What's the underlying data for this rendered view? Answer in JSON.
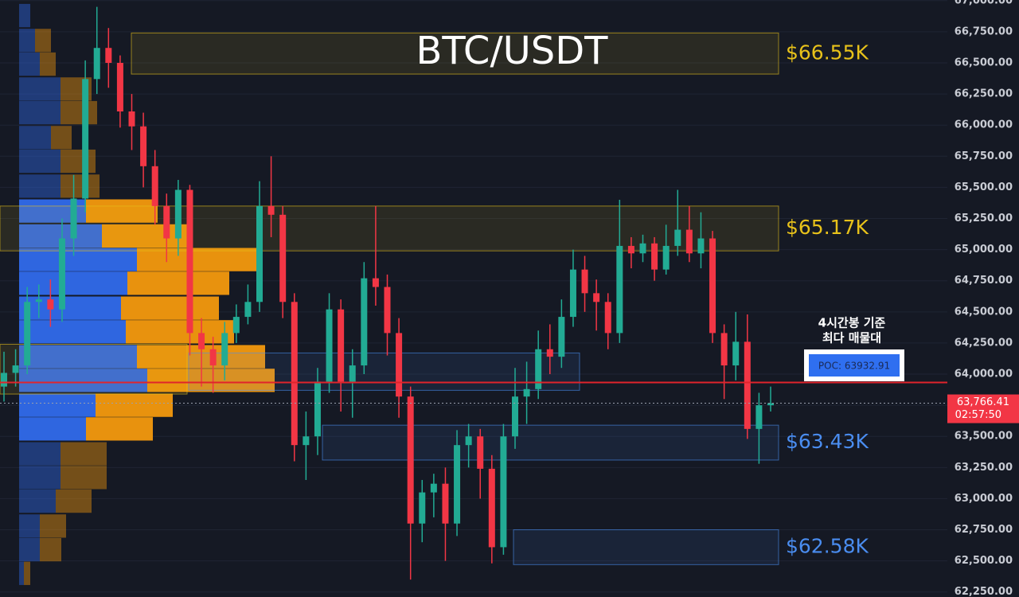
{
  "chart_data": {
    "type": "candlestick",
    "title": "BTC/USDT",
    "ylim": [
      62210,
      67005
    ],
    "yticks": [
      {
        "value": 62250,
        "label": "62,250.00"
      },
      {
        "value": 62500,
        "label": "62,500.00"
      },
      {
        "value": 62750,
        "label": "62,750.00"
      },
      {
        "value": 63000,
        "label": "63,000.00"
      },
      {
        "value": 63250,
        "label": "63,250.00"
      },
      {
        "value": 63500,
        "label": "63,500.00"
      },
      {
        "value": 63750,
        "label": "63,750.00"
      },
      {
        "value": 64000,
        "label": "64,000.00"
      },
      {
        "value": 64250,
        "label": "64,250.00"
      },
      {
        "value": 64500,
        "label": "64,500.00"
      },
      {
        "value": 64750,
        "label": "64,750.00"
      },
      {
        "value": 65000,
        "label": "65,000.00"
      },
      {
        "value": 65250,
        "label": "65,250.00"
      },
      {
        "value": 65500,
        "label": "65,500.00"
      },
      {
        "value": 65750,
        "label": "65,750.00"
      },
      {
        "value": 66000,
        "label": "66,000.00"
      },
      {
        "value": 66250,
        "label": "66,250.00"
      },
      {
        "value": 66500,
        "label": "66,500.00"
      },
      {
        "value": 66750,
        "label": "66,750.00"
      },
      {
        "value": 67000,
        "label": "67,000.00"
      }
    ],
    "grid": true,
    "colors": {
      "up": "#22ab94",
      "down": "#f23645"
    },
    "open": [
      63900,
      64010,
      64070,
      64580,
      64600,
      64520,
      65090,
      65410,
      66370,
      66620,
      66500,
      66110,
      65990,
      65670,
      65350,
      65090,
      65480,
      64330,
      64200,
      64070,
      64330,
      64460,
      64580,
      65350,
      65280,
      64580,
      63430,
      63500,
      63940,
      64520,
      63940,
      64070,
      64770,
      64700,
      64330,
      63820,
      62800,
      63050,
      63120,
      62800,
      63430,
      63500,
      63240,
      62610,
      63500,
      63820,
      63880,
      64200,
      64140,
      64460,
      64840,
      64650,
      64580,
      64330,
      65030,
      64970,
      65050,
      64840,
      65030,
      65160,
      64970,
      65090,
      64330,
      64070,
      64260,
      63560,
      63750
    ],
    "high": [
      64180,
      64200,
      64700,
      64720,
      64760,
      65250,
      65600,
      66520,
      66950,
      66780,
      66560,
      66250,
      66100,
      65800,
      65450,
      65560,
      65520,
      64450,
      64300,
      64420,
      64560,
      64720,
      65550,
      65750,
      65350,
      64650,
      63700,
      64050,
      64650,
      64600,
      64200,
      64900,
      65350,
      64800,
      64450,
      63900,
      63150,
      63200,
      63250,
      63550,
      63600,
      63560,
      63350,
      63600,
      64050,
      64100,
      64350,
      64400,
      64600,
      65000,
      64950,
      64760,
      64650,
      65400,
      65100,
      65120,
      65100,
      65200,
      65480,
      65350,
      65300,
      65150,
      64400,
      64500,
      64480,
      63850,
      63900
    ],
    "low": [
      63780,
      63900,
      64000,
      64450,
      64380,
      64420,
      64950,
      65300,
      66250,
      66300,
      65980,
      65800,
      65500,
      65200,
      64900,
      64950,
      64150,
      63900,
      63850,
      63950,
      64250,
      64400,
      64500,
      65100,
      64450,
      63300,
      63150,
      63350,
      63850,
      63700,
      63650,
      64000,
      64550,
      64150,
      63650,
      62350,
      62650,
      62850,
      62500,
      62700,
      63250,
      63000,
      62480,
      62550,
      63400,
      63600,
      63800,
      64000,
      64050,
      64380,
      64500,
      64350,
      64200,
      64250,
      64850,
      64900,
      64750,
      64800,
      64950,
      64900,
      64850,
      64250,
      63800,
      63950,
      63480,
      63280,
      63700
    ],
    "close": [
      64010,
      64070,
      64580,
      64600,
      64520,
      65090,
      65410,
      66370,
      66620,
      66500,
      66110,
      65990,
      65670,
      65350,
      65090,
      65480,
      64330,
      64200,
      64070,
      64330,
      64460,
      64580,
      65350,
      65280,
      64580,
      63430,
      63500,
      63940,
      64520,
      63940,
      64070,
      64770,
      64700,
      64330,
      63820,
      62800,
      63050,
      63120,
      62800,
      63430,
      63500,
      63240,
      62610,
      63500,
      63820,
      63880,
      64200,
      64140,
      64460,
      64840,
      64650,
      64580,
      64330,
      65030,
      64970,
      65050,
      64840,
      65030,
      65160,
      64970,
      65090,
      64330,
      64070,
      64260,
      63560,
      63750,
      63766.41
    ],
    "last_price": {
      "value": 63766.41,
      "label": "63,766.41",
      "countdown": "02:57:50"
    },
    "poc": {
      "value": 63932.91,
      "label": "POC: 63932.91",
      "color": "#e0242b"
    },
    "annotation": [
      "4시간봉 기준",
      "최다 매물대"
    ],
    "zones": [
      {
        "label": "$66.55K",
        "low": 66410,
        "high": 66740,
        "color": "#e8c21a"
      },
      {
        "label": "$65.17K",
        "low": 64990,
        "high": 65350,
        "color": "#e8c21a"
      },
      {
        "label": "$63.43K",
        "low": 63310,
        "high": 63590,
        "color": "#4a8df0"
      },
      {
        "label": "$62.58K",
        "low": 62470,
        "high": 62750,
        "color": "#4a8df0"
      },
      {
        "low": 63870,
        "high": 64170,
        "color": "#4a8df0"
      },
      {
        "low": 63840,
        "high": 64240,
        "color": "#e8c21a"
      }
    ],
    "profile": {
      "levels": [
        66880,
        66680,
        66490,
        66290,
        66100,
        65900,
        65710,
        65510,
        65310,
        65110,
        64920,
        64730,
        64530,
        64340,
        64140,
        63950,
        63750,
        63560,
        63360,
        63170,
        62980,
        62780,
        62590,
        62400
      ],
      "buy": [
        14,
        20,
        26,
        52,
        52,
        40,
        52,
        52,
        84,
        104,
        148,
        136,
        128,
        134,
        148,
        161,
        96,
        84,
        52,
        52,
        46,
        26,
        26,
        6
      ],
      "sell": [
        0,
        20,
        20,
        39,
        46,
        26,
        44,
        49,
        90,
        112,
        154,
        128,
        123,
        136,
        161,
        160,
        97,
        84,
        58,
        58,
        45,
        33,
        27,
        8
      ],
      "buy_color": "#2f66e0",
      "sell_color": "#e8920e",
      "value_area": [
        63460,
        65410
      ]
    }
  }
}
